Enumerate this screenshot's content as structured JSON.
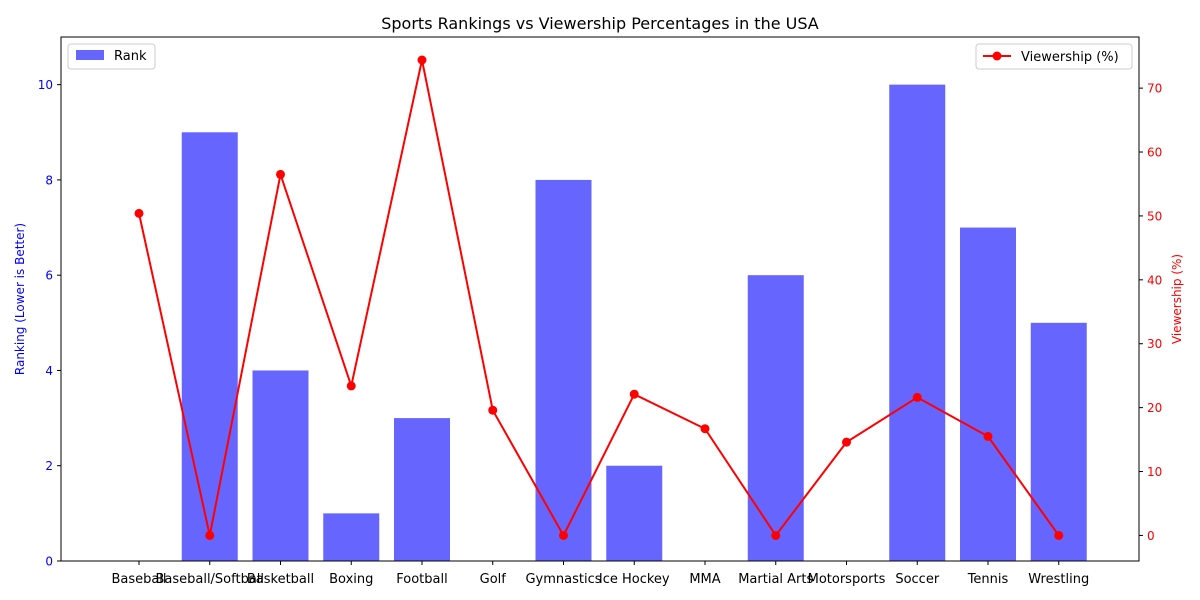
{
  "chart_data": {
    "type": "bar",
    "title": "Sports Rankings vs Viewership Percentages in the USA",
    "categories": [
      "Baseball",
      "Baseball/Softball",
      "Basketball",
      "Boxing",
      "Football",
      "Golf",
      "Gymnastics",
      "Ice Hockey",
      "MMA",
      "Martial Arts",
      "Motorsports",
      "Soccer",
      "Tennis",
      "Wrestling"
    ],
    "ylabel_left": "Ranking (Lower is Better)",
    "ylabel_right": "Viewership (%)",
    "ylim_left": [
      0,
      11
    ],
    "ylim_right": [
      -4,
      78
    ],
    "yticks_left": [
      "0",
      "2",
      "4",
      "6",
      "8",
      "10"
    ],
    "yticks_right": [
      "0",
      "10",
      "20",
      "30",
      "40",
      "50",
      "60",
      "70"
    ],
    "grid": false,
    "series": [
      {
        "name": "Rank",
        "type": "bar",
        "color": "#6666ff",
        "axis": "left",
        "legend_position": "upper-left",
        "values": [
          null,
          9,
          4,
          1,
          3,
          null,
          8,
          2,
          null,
          6,
          null,
          10,
          7,
          5
        ]
      },
      {
        "name": "Viewership (%)",
        "type": "line",
        "color": "#ff0000",
        "axis": "right",
        "legend_position": "upper-right",
        "values": [
          50.4,
          0,
          56.5,
          23.4,
          74.4,
          19.6,
          0,
          22.1,
          16.7,
          0,
          14.6,
          21.6,
          15.5,
          0
        ]
      }
    ]
  }
}
